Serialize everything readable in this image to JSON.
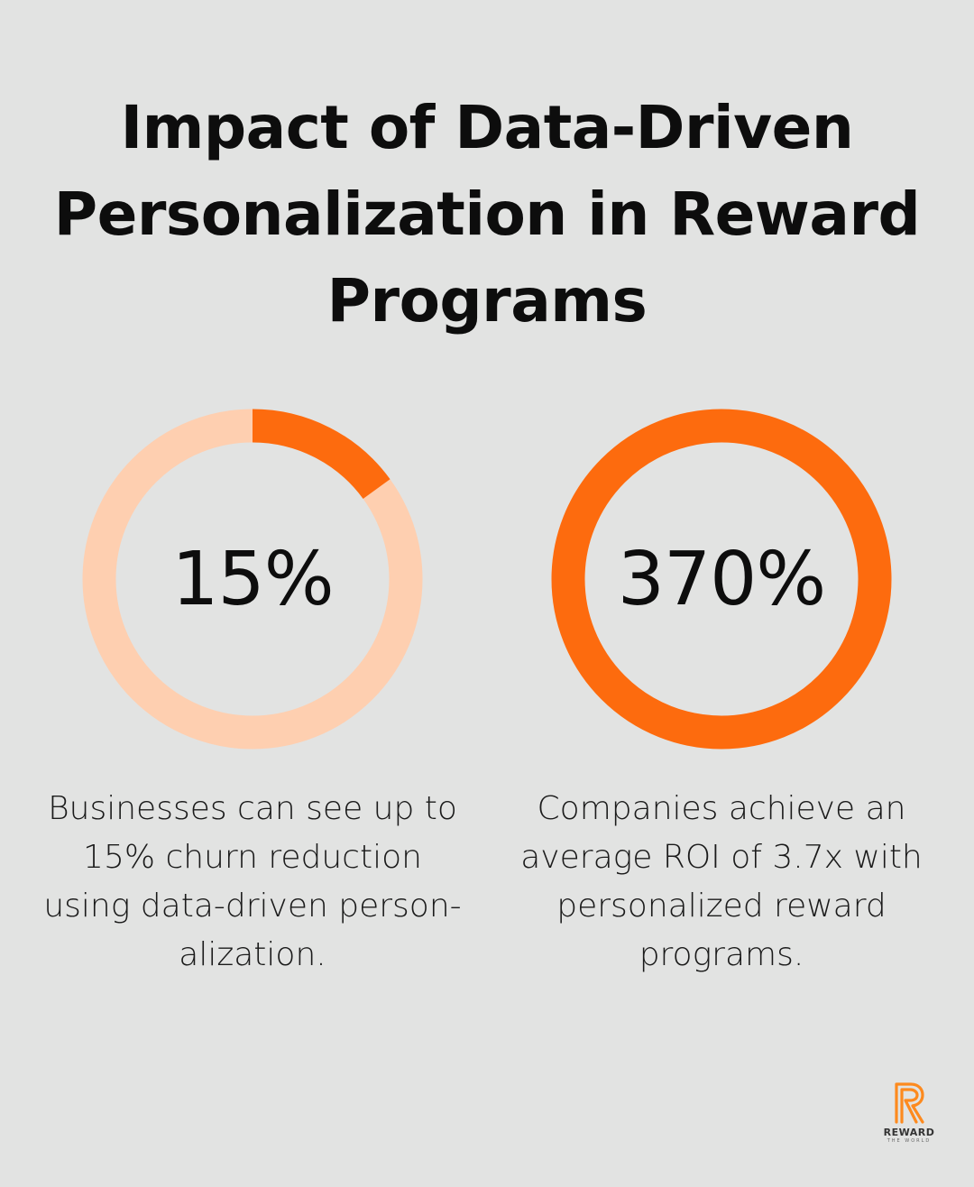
{
  "title_lines": [
    "Impact of Data-Driven",
    "Personalization in Reward",
    "Programs"
  ],
  "colors": {
    "background": "#e2e3e2",
    "accent": "#fd6b0e",
    "track_light": "#fecfb0"
  },
  "chart_data": [
    {
      "type": "pie",
      "subtype": "donut",
      "value_label": "15%",
      "filled_fraction": 0.15,
      "description_lines": [
        "Businesses can see up to",
        "15% churn reduction",
        "using data-driven person-",
        "alization."
      ]
    },
    {
      "type": "pie",
      "subtype": "donut",
      "value_label": "370%",
      "filled_fraction": 1.0,
      "description_lines": [
        "Companies achieve an",
        "average ROI of 3.7x with",
        "personalized reward",
        "programs."
      ]
    }
  ],
  "logo": {
    "word": "REWARD",
    "sub": "THE WORLD"
  }
}
